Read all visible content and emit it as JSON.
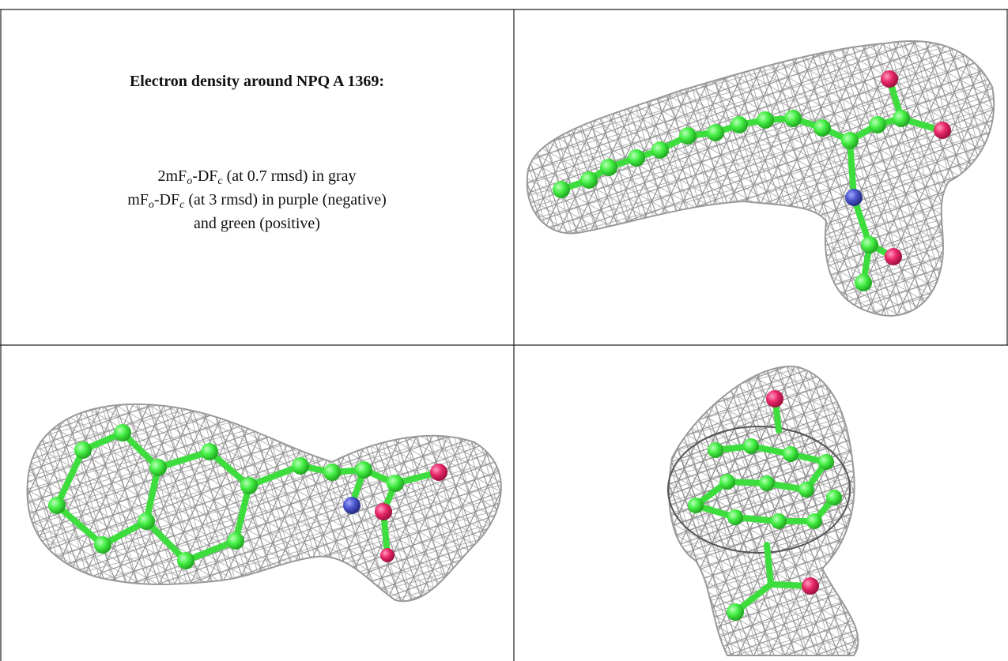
{
  "title": "Electron density around NPQ A 1369:",
  "lines": [
    [
      "2mF",
      "o",
      "-DF",
      "c",
      " (at 0.7 rmsd) in gray"
    ],
    [
      "mF",
      "o",
      "-DF",
      "c",
      " (at 3 rmsd) in purple (negative)"
    ],
    [
      "and green (positive)"
    ]
  ]
}
